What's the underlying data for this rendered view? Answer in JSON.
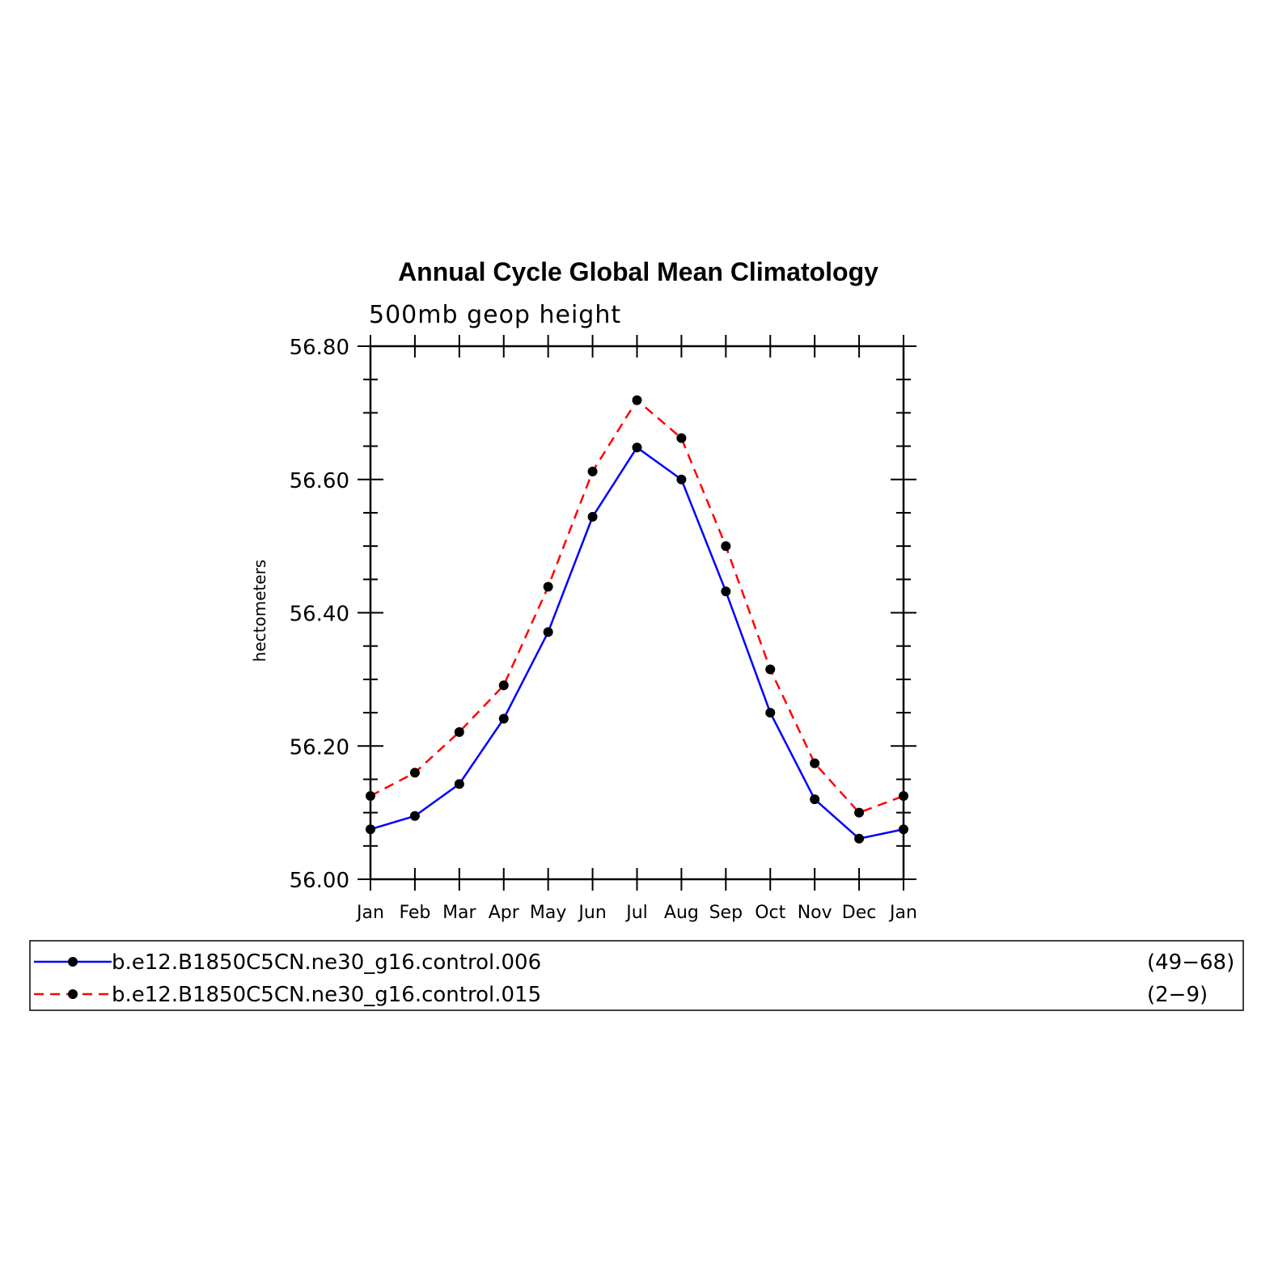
{
  "chart_data": {
    "type": "line",
    "title": "Annual Cycle Global Mean Climatology",
    "subtitle": "500mb geop height",
    "ylabel": "hectometers",
    "xlabel": "",
    "categories": [
      "Jan",
      "Feb",
      "Mar",
      "Apr",
      "May",
      "Jun",
      "Jul",
      "Aug",
      "Sep",
      "Oct",
      "Nov",
      "Dec",
      "Jan"
    ],
    "ylim": [
      56.0,
      56.8
    ],
    "yticks": [
      "56.00",
      "56.20",
      "56.40",
      "56.60",
      "56.80"
    ],
    "grid": false,
    "legend_position": "bottom",
    "series": [
      {
        "name": "b.e12.B1850C5CN.ne30_g16.control.006",
        "years": "(49−68)",
        "color": "#0000ff",
        "line_style": "solid",
        "values": [
          56.075,
          56.095,
          56.143,
          56.241,
          56.371,
          56.544,
          56.648,
          56.6,
          56.432,
          56.25,
          56.12,
          56.061,
          56.075
        ]
      },
      {
        "name": "b.e12.B1850C5CN.ne30_g16.control.015",
        "years": "(2−9)",
        "color": "#ff0000",
        "line_style": "dashed",
        "values": [
          56.125,
          56.16,
          56.221,
          56.291,
          56.439,
          56.612,
          56.719,
          56.662,
          56.5,
          56.315,
          56.174,
          56.1,
          56.125
        ]
      }
    ],
    "marker_color": "#000000"
  }
}
